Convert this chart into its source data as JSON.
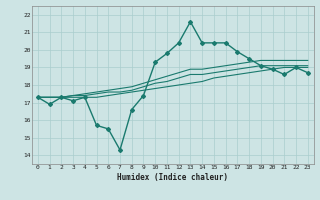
{
  "xlabel": "Humidex (Indice chaleur)",
  "xlim": [
    -0.5,
    23.5
  ],
  "ylim": [
    13.5,
    22.5
  ],
  "yticks": [
    14,
    15,
    16,
    17,
    18,
    19,
    20,
    21,
    22
  ],
  "xticks": [
    0,
    1,
    2,
    3,
    4,
    5,
    6,
    7,
    8,
    9,
    10,
    11,
    12,
    13,
    14,
    15,
    16,
    17,
    18,
    19,
    20,
    21,
    22,
    23
  ],
  "background_color": "#cde4e4",
  "grid_color": "#aacece",
  "line_color": "#1a7a6e",
  "lines": [
    {
      "x": [
        0,
        1,
        2,
        3,
        4,
        5,
        6,
        7,
        8,
        9,
        10,
        11,
        12,
        13,
        14,
        15,
        16,
        17,
        18,
        19,
        20,
        21,
        22,
        23
      ],
      "y": [
        17.3,
        16.9,
        17.3,
        17.1,
        17.3,
        15.7,
        15.5,
        14.3,
        16.6,
        17.4,
        19.3,
        19.8,
        20.4,
        21.6,
        20.4,
        20.4,
        20.4,
        19.9,
        19.5,
        19.1,
        18.9,
        18.6,
        19.0,
        18.7
      ],
      "marker": "D",
      "markersize": 2.0,
      "linewidth": 1.0,
      "has_marker": true
    },
    {
      "x": [
        0,
        1,
        2,
        3,
        4,
        5,
        6,
        7,
        8,
        9,
        10,
        11,
        12,
        13,
        14,
        15,
        16,
        17,
        18,
        19,
        20,
        21,
        22,
        23
      ],
      "y": [
        17.3,
        17.3,
        17.3,
        17.3,
        17.3,
        17.3,
        17.4,
        17.5,
        17.6,
        17.7,
        17.8,
        17.9,
        18.0,
        18.1,
        18.2,
        18.4,
        18.5,
        18.6,
        18.7,
        18.8,
        18.9,
        19.0,
        19.0,
        19.0
      ],
      "marker": null,
      "markersize": 0,
      "linewidth": 0.8,
      "has_marker": false
    },
    {
      "x": [
        0,
        1,
        2,
        3,
        4,
        5,
        6,
        7,
        8,
        9,
        10,
        11,
        12,
        13,
        14,
        15,
        16,
        17,
        18,
        19,
        20,
        21,
        22,
        23
      ],
      "y": [
        17.3,
        17.3,
        17.3,
        17.4,
        17.4,
        17.5,
        17.6,
        17.6,
        17.7,
        17.9,
        18.1,
        18.2,
        18.4,
        18.6,
        18.6,
        18.7,
        18.8,
        18.9,
        19.0,
        19.1,
        19.1,
        19.1,
        19.1,
        19.1
      ],
      "marker": null,
      "markersize": 0,
      "linewidth": 0.8,
      "has_marker": false
    },
    {
      "x": [
        0,
        1,
        2,
        3,
        4,
        5,
        6,
        7,
        8,
        9,
        10,
        11,
        12,
        13,
        14,
        15,
        16,
        17,
        18,
        19,
        20,
        21,
        22,
        23
      ],
      "y": [
        17.3,
        17.3,
        17.3,
        17.4,
        17.5,
        17.6,
        17.7,
        17.8,
        17.9,
        18.1,
        18.3,
        18.5,
        18.7,
        18.9,
        18.9,
        19.0,
        19.1,
        19.2,
        19.3,
        19.4,
        19.4,
        19.4,
        19.4,
        19.4
      ],
      "marker": null,
      "markersize": 0,
      "linewidth": 0.8,
      "has_marker": false
    }
  ]
}
